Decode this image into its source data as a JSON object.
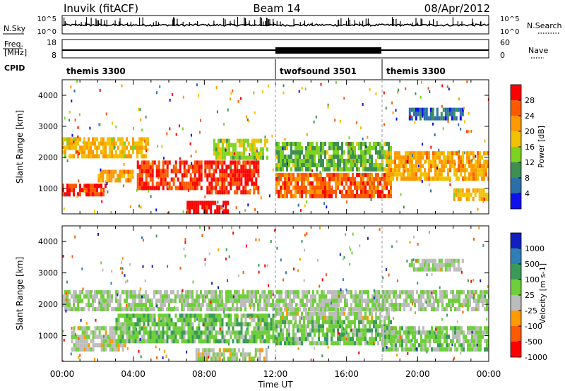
{
  "header": {
    "station": "Inuvik (fitACF)",
    "beam": "Beam 14",
    "date": "08/Apr/2012"
  },
  "panels": {
    "nsky": {
      "label": "N.Sky",
      "ticks": [
        "10^5",
        "10^0"
      ]
    },
    "freq": {
      "label_line1": "Freq.",
      "label_line2": "[MHz]",
      "ticks": [
        "18",
        "8"
      ]
    },
    "cpid": {
      "label": "CPID"
    },
    "nsearch": {
      "label": "N.Search",
      "ticks": [
        "10^5",
        "10^0"
      ]
    },
    "nave": {
      "label": "Nave",
      "ticks": [
        "60",
        "0"
      ]
    }
  },
  "cpid_segments": [
    {
      "name": "themis 3300",
      "start": 0,
      "end": 12
    },
    {
      "name": "twofsound 3501",
      "start": 12,
      "end": 18
    },
    {
      "name": "themis 3300",
      "start": 18,
      "end": 24
    }
  ],
  "axes": {
    "xlabel": "Time UT",
    "x_ticks": [
      "00:00",
      "04:00",
      "08:00",
      "12:00",
      "16:00",
      "20:00",
      "00:00"
    ],
    "x_range": [
      0,
      24
    ],
    "ylabel": "Slant Range [km]",
    "y_ticks": [
      "1000",
      "2000",
      "3000",
      "4000"
    ],
    "y_range": [
      180,
      4500
    ]
  },
  "colorbars": {
    "power": {
      "label": "Power [dB]",
      "labels": [
        "28",
        "24",
        "20",
        "16",
        "12",
        "8",
        "4"
      ],
      "colors": [
        "#ff0000",
        "#ff5a00",
        "#ff9900",
        "#f2c200",
        "#7ed321",
        "#3f8f55",
        "#2a6fa8",
        "#1010ee"
      ]
    },
    "velocity": {
      "label": "Velocity [m s-1]",
      "labels": [
        "1000",
        "500",
        "100",
        "25",
        "-25",
        "-100",
        "-500",
        "-1000"
      ],
      "colors": [
        "#1020c0",
        "#2e7fb5",
        "#3a9a5a",
        "#6fcf3a",
        "#bcbcbc",
        "#ff9a00",
        "#ff5a00",
        "#ff0000"
      ]
    }
  },
  "chart_data": [
    {
      "type": "heatmap",
      "title": "Power [dB]",
      "xlabel": "Time UT",
      "ylabel": "Slant Range [km]",
      "xlim": [
        0,
        24
      ],
      "ylim": [
        180,
        4500
      ],
      "scale": [
        0,
        30
      ],
      "bands": [
        {
          "t0": 0.0,
          "t1": 4.8,
          "r0": 2050,
          "r1": 2650,
          "v": 18
        },
        {
          "t0": 0.0,
          "t1": 2.5,
          "r0": 800,
          "r1": 1150,
          "v": 27
        },
        {
          "t0": 2.0,
          "t1": 4.0,
          "r0": 1200,
          "r1": 1600,
          "v": 20
        },
        {
          "t0": 4.2,
          "t1": 7.8,
          "r0": 1000,
          "r1": 1900,
          "v": 26
        },
        {
          "t0": 7.0,
          "t1": 9.3,
          "r0": 180,
          "r1": 600,
          "v": 29
        },
        {
          "t0": 8.0,
          "t1": 11.0,
          "r0": 900,
          "r1": 1900,
          "v": 27
        },
        {
          "t0": 8.5,
          "t1": 11.5,
          "r0": 2000,
          "r1": 2600,
          "v": 14
        },
        {
          "t0": 12.0,
          "t1": 18.5,
          "r0": 800,
          "r1": 1500,
          "v": 24
        },
        {
          "t0": 12.0,
          "t1": 18.5,
          "r0": 1600,
          "r1": 2500,
          "v": 12
        },
        {
          "t0": 18.2,
          "t1": 24.0,
          "r0": 1300,
          "r1": 2200,
          "v": 20
        },
        {
          "t0": 19.5,
          "t1": 22.5,
          "r0": 3200,
          "r1": 3600,
          "v": 6
        },
        {
          "t0": 22.0,
          "t1": 24.0,
          "r0": 700,
          "r1": 1000,
          "v": 18
        }
      ]
    },
    {
      "type": "heatmap",
      "title": "Velocity [m s-1]",
      "xlabel": "Time UT",
      "ylabel": "Slant Range [km]",
      "xlim": [
        0,
        24
      ],
      "ylim": [
        180,
        4500
      ],
      "scale": [
        -1000,
        1000
      ],
      "bands": [
        {
          "t0": 0.0,
          "t1": 24.0,
          "r0": 1850,
          "r1": 2450,
          "v": 0
        },
        {
          "t0": 0.5,
          "t1": 3.5,
          "r0": 600,
          "r1": 1300,
          "v": -80
        },
        {
          "t0": 3.0,
          "t1": 12.0,
          "r0": 800,
          "r1": 1700,
          "v": 150
        },
        {
          "t0": 7.5,
          "t1": 11.5,
          "r0": 180,
          "r1": 600,
          "v": -100
        },
        {
          "t0": 12.0,
          "t1": 18.5,
          "r0": 800,
          "r1": 1500,
          "v": 150
        },
        {
          "t0": 12.0,
          "t1": 18.5,
          "r0": 1600,
          "r1": 1900,
          "v": -60
        },
        {
          "t0": 18.0,
          "t1": 24.0,
          "r0": 600,
          "r1": 1300,
          "v": 80
        },
        {
          "t0": 19.5,
          "t1": 22.5,
          "r0": 3150,
          "r1": 3450,
          "v": 0
        }
      ]
    }
  ]
}
